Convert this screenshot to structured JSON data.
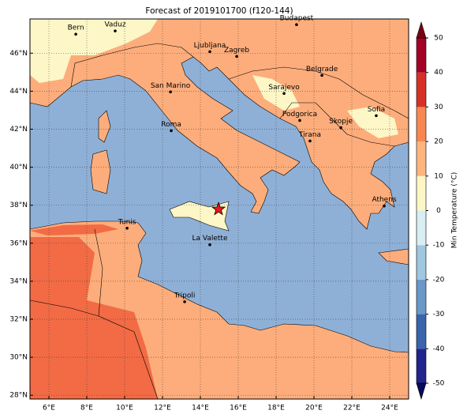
{
  "title": "Forecast of 2019101700 (f120-144)",
  "map": {
    "xlim": [
      5,
      25
    ],
    "ylim": [
      27.8,
      47.8
    ],
    "xticks": [
      {
        "value": 6,
        "label": "6°E"
      },
      {
        "value": 8,
        "label": "8°E"
      },
      {
        "value": 10,
        "label": "10°E"
      },
      {
        "value": 12,
        "label": "12°E"
      },
      {
        "value": 14,
        "label": "14°E"
      },
      {
        "value": 16,
        "label": "16°E"
      },
      {
        "value": 18,
        "label": "18°E"
      },
      {
        "value": 20,
        "label": "20°E"
      },
      {
        "value": 22,
        "label": "22°E"
      },
      {
        "value": 24,
        "label": "24°E"
      }
    ],
    "yticks": [
      {
        "value": 28,
        "label": "28°N"
      },
      {
        "value": 30,
        "label": "30°N"
      },
      {
        "value": 32,
        "label": "32°N"
      },
      {
        "value": 34,
        "label": "34°N"
      },
      {
        "value": 36,
        "label": "36°N"
      },
      {
        "value": 38,
        "label": "38°N"
      },
      {
        "value": 40,
        "label": "40°N"
      },
      {
        "value": 42,
        "label": "42°N"
      },
      {
        "value": 44,
        "label": "44°N"
      },
      {
        "value": 46,
        "label": "46°N"
      }
    ],
    "grid": true,
    "cities": [
      {
        "name": "Bern",
        "lon": 7.42,
        "lat": 47.0
      },
      {
        "name": "Vaduz",
        "lon": 9.5,
        "lat": 47.17
      },
      {
        "name": "Budapest",
        "lon": 19.08,
        "lat": 47.5
      },
      {
        "name": "Ljubljana",
        "lon": 14.5,
        "lat": 46.08
      },
      {
        "name": "Zagreb",
        "lon": 15.92,
        "lat": 45.83
      },
      {
        "name": "Belgrade",
        "lon": 20.42,
        "lat": 44.83
      },
      {
        "name": "San Marino",
        "lon": 12.42,
        "lat": 43.96
      },
      {
        "name": "Sarajevo",
        "lon": 18.42,
        "lat": 43.88
      },
      {
        "name": "Sofia",
        "lon": 23.29,
        "lat": 42.71
      },
      {
        "name": "Podgorica",
        "lon": 19.25,
        "lat": 42.46
      },
      {
        "name": "Skopje",
        "lon": 21.42,
        "lat": 42.08
      },
      {
        "name": "Roma",
        "lon": 12.46,
        "lat": 41.92
      },
      {
        "name": "Tirana",
        "lon": 19.79,
        "lat": 41.38
      },
      {
        "name": "Athens",
        "lon": 23.71,
        "lat": 37.96
      },
      {
        "name": "Tunis",
        "lon": 10.13,
        "lat": 36.79
      },
      {
        "name": "La Valette",
        "lon": 14.5,
        "lat": 35.92
      },
      {
        "name": "Tripoli",
        "lon": 13.17,
        "lat": 32.92
      }
    ],
    "marker": {
      "lon": 14.96,
      "lat": 37.79,
      "color": "#e41a1c"
    }
  },
  "colorbar": {
    "label": "Min Temperature (°C)",
    "lim": [
      -50,
      50
    ],
    "ticks": [
      -50,
      -40,
      -30,
      -20,
      -10,
      0,
      10,
      20,
      30,
      40,
      50
    ],
    "colors": [
      "#23238e",
      "#3b64ad",
      "#6a98c8",
      "#9fc7e0",
      "#d8eef3",
      "#fdf6c6",
      "#fdb47e",
      "#f8874f",
      "#d73027",
      "#a50026"
    ],
    "extend_colors": [
      "#0a0a5a",
      "#7a0016"
    ]
  }
}
